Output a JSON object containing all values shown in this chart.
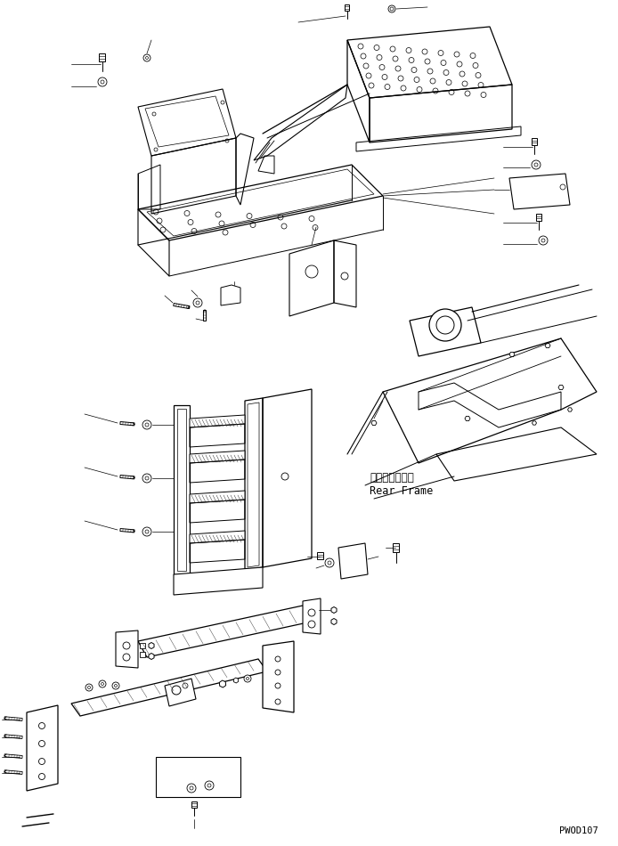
{
  "background_color": "#ffffff",
  "line_color": "#000000",
  "text_color": "#000000",
  "watermark": "PWOD107",
  "label_rear_frame_jp": "リヤーフレーム",
  "label_rear_frame_en": "Rear Frame",
  "figsize": [
    6.94,
    9.5
  ],
  "dpi": 100
}
